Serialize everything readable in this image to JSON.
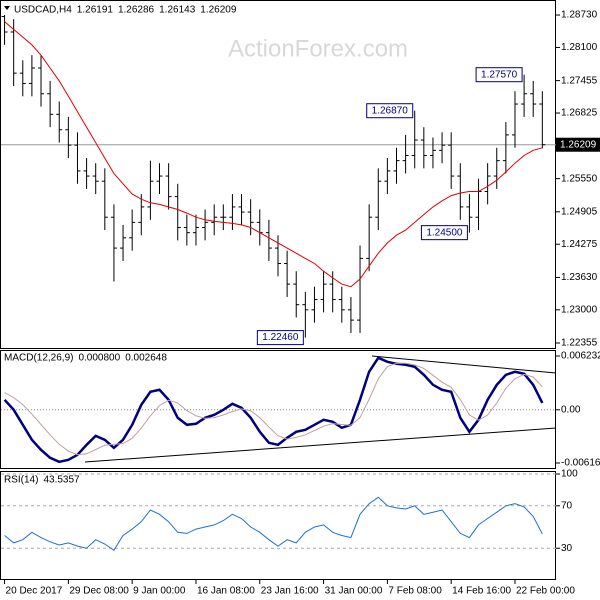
{
  "chart_data": [
    {
      "type": "ohlc",
      "title": "USDCAD,H4",
      "header_values": [
        1.26191,
        1.26286,
        1.26143,
        1.26209
      ],
      "watermark": "ActionForex.com",
      "last_price": 1.26209,
      "color": "#000000",
      "xlim": [
        -0.5,
        60.5
      ],
      "ylim": [
        1.22258,
        1.29022
      ],
      "yticks": [
        {
          "value": 1.2873,
          "label": "1.28730"
        },
        {
          "value": 1.281,
          "label": "1.28100"
        },
        1.27455,
        1.26825,
        {
          "value": 1.2555,
          "label": "1.25550"
        },
        1.24905,
        1.24275,
        {
          "value": 1.2363,
          "label": "1.23630"
        },
        {
          "value": 1.23,
          "label": "1.23000"
        },
        1.22355
      ],
      "open": [
        1.287,
        1.284,
        1.276,
        1.274,
        1.277,
        1.272,
        1.268,
        1.265,
        1.262,
        1.257,
        1.256,
        1.255,
        1.248,
        1.242,
        1.244,
        1.247,
        1.25,
        1.255,
        1.256,
        1.252,
        1.246,
        1.245,
        1.246,
        1.247,
        1.248,
        1.248,
        1.25,
        1.249,
        1.247,
        1.245,
        1.242,
        1.239,
        1.235,
        1.231,
        1.23,
        1.232,
        1.235,
        1.232,
        1.23,
        1.228,
        1.24,
        1.248,
        1.255,
        1.257,
        1.259,
        1.26,
        1.263,
        1.26,
        1.261,
        1.262,
        1.256,
        1.25,
        1.248,
        1.253,
        1.256,
        1.259,
        1.264,
        1.27,
        1.272,
        1.27
      ],
      "high": [
        1.2873,
        1.2865,
        1.2785,
        1.2795,
        1.2795,
        1.2745,
        1.2705,
        1.2675,
        1.2645,
        1.2595,
        1.2585,
        1.2575,
        1.2505,
        1.2465,
        1.2495,
        1.2525,
        1.259,
        1.2585,
        1.2585,
        1.2545,
        1.2485,
        1.2485,
        1.2495,
        1.2505,
        1.2505,
        1.2525,
        1.2525,
        1.2515,
        1.2495,
        1.2475,
        1.2445,
        1.2415,
        1.2375,
        1.2335,
        1.2345,
        1.2375,
        1.2375,
        1.2345,
        1.2325,
        1.2425,
        1.2505,
        1.2575,
        1.2595,
        1.2615,
        1.264,
        1.2687,
        1.2655,
        1.2635,
        1.2645,
        1.2645,
        1.2585,
        1.2525,
        1.2555,
        1.2585,
        1.2615,
        1.2665,
        1.2725,
        1.2757,
        1.2745,
        1.2725
      ],
      "low": [
        1.2815,
        1.2735,
        1.2715,
        1.2715,
        1.2695,
        1.2655,
        1.2625,
        1.2595,
        1.2545,
        1.2535,
        1.2525,
        1.2455,
        1.2355,
        1.2395,
        1.2415,
        1.2445,
        1.2475,
        1.2525,
        1.2495,
        1.2435,
        1.2425,
        1.2425,
        1.2435,
        1.2445,
        1.2455,
        1.2455,
        1.2465,
        1.2445,
        1.2425,
        1.2395,
        1.2365,
        1.2325,
        1.2285,
        1.2246,
        1.2275,
        1.2295,
        1.2295,
        1.2275,
        1.2255,
        1.2255,
        1.2375,
        1.2455,
        1.2525,
        1.2545,
        1.2565,
        1.2575,
        1.2575,
        1.2575,
        1.2585,
        1.2535,
        1.2475,
        1.245,
        1.2455,
        1.2505,
        1.2535,
        1.2565,
        1.2615,
        1.2675,
        1.2675,
        1.2614
      ],
      "close": [
        1.284,
        1.276,
        1.274,
        1.277,
        1.272,
        1.268,
        1.265,
        1.262,
        1.257,
        1.256,
        1.255,
        1.248,
        1.242,
        1.244,
        1.247,
        1.25,
        1.255,
        1.256,
        1.252,
        1.246,
        1.245,
        1.246,
        1.247,
        1.248,
        1.248,
        1.25,
        1.249,
        1.247,
        1.245,
        1.242,
        1.239,
        1.235,
        1.231,
        1.23,
        1.232,
        1.235,
        1.232,
        1.23,
        1.228,
        1.24,
        1.248,
        1.255,
        1.257,
        1.259,
        1.26,
        1.263,
        1.26,
        1.261,
        1.262,
        1.256,
        1.25,
        1.248,
        1.253,
        1.256,
        1.259,
        1.264,
        1.27,
        1.272,
        1.27,
        1.26209
      ],
      "series": [
        {
          "color": "#e00000",
          "values": [
            1.286,
            1.2845,
            1.283,
            1.2815,
            1.2795,
            1.277,
            1.2745,
            1.2715,
            1.2685,
            1.2655,
            1.2625,
            1.2595,
            1.2565,
            1.2545,
            1.2525,
            1.2515,
            1.2508,
            1.2505,
            1.25,
            1.2495,
            1.2488,
            1.248,
            1.2475,
            1.2472,
            1.247,
            1.2468,
            1.2465,
            1.246,
            1.245,
            1.244,
            1.243,
            1.242,
            1.241,
            1.24,
            1.239,
            1.2375,
            1.2362,
            1.235,
            1.2345,
            1.236,
            1.2385,
            1.241,
            1.243,
            1.2445,
            1.2455,
            1.247,
            1.2485,
            1.25,
            1.2512,
            1.2522,
            1.2527,
            1.253,
            1.253,
            1.254,
            1.2552,
            1.2568,
            1.2585,
            1.26,
            1.261,
            1.2615
          ]
        }
      ],
      "annotations": [
        {
          "x": 57,
          "value": 1.2757,
          "label": "1.27570"
        },
        {
          "x": 45,
          "value": 1.2687,
          "label": "1.26870"
        },
        {
          "x": 51,
          "value": 1.245,
          "label": "1.24500"
        },
        {
          "x": 33,
          "value": 1.2246,
          "label": "1.22460"
        }
      ]
    },
    {
      "type": "line",
      "title": "MACD(12,26,9)",
      "header_values": [
        {
          "value": 0.0008,
          "label": "0.000800"
        },
        0.002648
      ],
      "xlim": [
        -0.5,
        60.5
      ],
      "ylim": [
        -0.006742,
        0.006927
      ],
      "yticks": [
        0.006232,
        {
          "value": 0,
          "label": "0.00"
        },
        -0.006163
      ],
      "series": [
        {
          "color": "#000080",
          "width": 2.5,
          "values": [
            0.00116,
            0,
            -0.00174,
            -0.00347,
            -0.00463,
            -0.00556,
            -0.00602,
            -0.00579,
            -0.00521,
            -0.00405,
            -0.00301,
            -0.00347,
            -0.0044,
            -0.00347,
            -0.00174,
            0.00058,
            0.00208,
            0.00232,
            0.00116,
            -0.00093,
            -0.00174,
            -0.00162,
            -0.00093,
            -0.00058,
            0,
            0.00069,
            0.00023,
            -0.00093,
            -0.00255,
            -0.00382,
            -0.00405,
            -0.00324,
            -0.00255,
            -0.00232,
            -0.00174,
            -0.00116,
            -0.00139,
            -0.00208,
            -0.00174,
            0.00116,
            0.0044,
            0.00602,
            0.00556,
            0.00533,
            0.00521,
            0.00498,
            0.00405,
            0.0029,
            0.00232,
            0.00208,
            -0.00093,
            -0.00255,
            -0.00116,
            0.00116,
            0.0029,
            0.00405,
            0.0044,
            0.00417,
            0.0029,
            0.0008
          ]
        },
        {
          "color": "#c0a0a0",
          "width": 1,
          "values": [
            0.002,
            0.0014,
            0.0006,
            -0.0005,
            -0.0017,
            -0.0029,
            -0.004,
            -0.0048,
            -0.0052,
            -0.0051,
            -0.0046,
            -0.0041,
            -0.004,
            -0.0039,
            -0.0033,
            -0.0021,
            -0.0007,
            0.0005,
            0.0011,
            0.0008,
            -0.0001,
            -0.0007,
            -0.001,
            -0.0009,
            -0.0006,
            -0.0002,
            0.0001,
            -0.0001,
            -0.0009,
            -0.002,
            -0.003,
            -0.0034,
            -0.0032,
            -0.0029,
            -0.0024,
            -0.0019,
            -0.0016,
            -0.0017,
            -0.0018,
            -0.0009,
            0.0012,
            0.0036,
            0.005,
            0.0054,
            0.0054,
            0.0052,
            0.0048,
            0.004,
            0.0032,
            0.0026,
            0.0012,
            -0.0006,
            -0.0012,
            -0.0006,
            0.0008,
            0.0025,
            0.0036,
            0.0041,
            0.0038,
            0.002648
          ]
        }
      ]
    },
    {
      "type": "line",
      "title": "RSI(14)",
      "header_values": [
        43.5357
      ],
      "xlim": [
        -0.5,
        60.5
      ],
      "ylim": [
        0,
        100
      ],
      "yticks": [
        100,
        70,
        30
      ],
      "xticks": [
        {
          "value": 0,
          "label": "20 Dec 2017"
        },
        {
          "value": 7,
          "label": "29 Dec 08:00"
        },
        {
          "value": 14,
          "label": "9 Jan 00:00"
        },
        {
          "value": 21,
          "label": "16 Jan 08:00"
        },
        {
          "value": 28,
          "label": "23 Jan 16:00"
        },
        {
          "value": 35,
          "label": "31 Jan 00:00"
        },
        {
          "value": 42,
          "label": "7 Feb 08:00"
        },
        {
          "value": 49,
          "label": "14 Feb 16:00"
        },
        {
          "value": 56,
          "label": "22 Feb 00:00"
        }
      ],
      "series": [
        {
          "color": "#1e6fd9",
          "width": 1,
          "values": [
            42,
            35,
            38,
            45,
            40,
            36,
            33,
            35,
            32,
            30,
            38,
            34,
            28,
            42,
            48,
            55,
            66,
            62,
            55,
            45,
            44,
            48,
            50,
            52,
            56,
            62,
            58,
            50,
            45,
            38,
            32,
            38,
            35,
            45,
            50,
            52,
            45,
            42,
            40,
            62,
            72,
            78,
            70,
            68,
            67,
            70,
            62,
            64,
            66,
            55,
            44,
            40,
            52,
            58,
            64,
            70,
            72,
            69,
            60,
            43.5357
          ]
        }
      ]
    }
  ]
}
